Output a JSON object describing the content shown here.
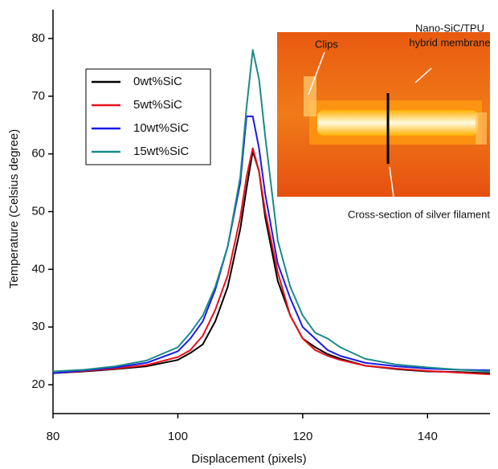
{
  "chart_data": {
    "type": "line",
    "x_label": "Displacement (pixels)",
    "y_label": "Temperature (Celsius degree)",
    "x": [
      80,
      85,
      90,
      95,
      100,
      102,
      104,
      106,
      108,
      110,
      111,
      112,
      113,
      114,
      116,
      118,
      120,
      122,
      124,
      126,
      130,
      135,
      140,
      145,
      150
    ],
    "series": [
      {
        "name": "0wt%SiC",
        "color": "#000000",
        "values": [
          22,
          22.3,
          22.7,
          23.2,
          24.3,
          25.5,
          27,
          31,
          37,
          47,
          54,
          60.5,
          57,
          49,
          38,
          32,
          28,
          26.5,
          25.3,
          24.5,
          23.3,
          22.7,
          22.3,
          22.2,
          22
        ]
      },
      {
        "name": "5wt%SiC",
        "color": "#e8101a",
        "values": [
          22,
          22.4,
          22.8,
          23.4,
          24.8,
          26,
          28.5,
          33,
          39,
          49,
          56,
          61,
          57,
          50,
          39.5,
          32,
          28,
          26,
          25,
          24.3,
          23.3,
          22.8,
          22.4,
          22.1,
          21.8
        ]
      },
      {
        "name": "10wt%SiC",
        "color": "#1a1ae8",
        "values": [
          22,
          22.5,
          23,
          23.8,
          25.8,
          28,
          31,
          36.5,
          44,
          55,
          66.5,
          66.5,
          61,
          53,
          41,
          35,
          30,
          28,
          26,
          25,
          23.8,
          23.2,
          22.8,
          22.6,
          22.5
        ]
      },
      {
        "name": "15wt%SiC",
        "color": "#1a8a8a",
        "values": [
          22.3,
          22.6,
          23.2,
          24.2,
          26.5,
          29,
          32,
          37,
          44,
          56,
          68,
          78,
          73,
          63,
          45,
          37,
          32,
          29,
          28,
          26.5,
          24.5,
          23.5,
          23,
          22.6,
          22.3
        ]
      }
    ],
    "xlim": [
      80,
      150
    ],
    "xticks": [
      80,
      100,
      120,
      140
    ],
    "ylim": [
      15,
      85
    ],
    "yticks": [
      20,
      30,
      40,
      50,
      60,
      70,
      80
    ],
    "inset_annotations": [
      "Clips",
      "Nano-SiC/TPU",
      "hybrid membrane",
      "Cross-section of silver filament"
    ]
  }
}
